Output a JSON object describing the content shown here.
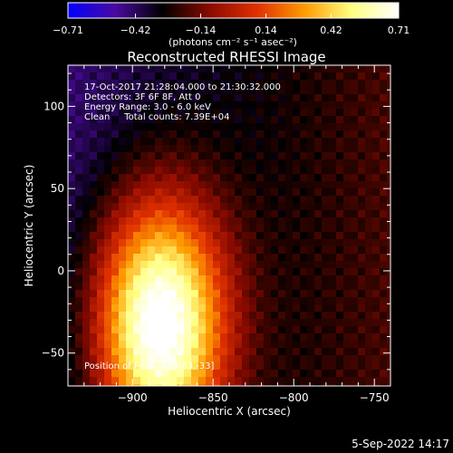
{
  "chart_data": {
    "type": "heatmap",
    "title": "Reconstructed RHESSI Image",
    "xlabel": "Heliocentric X (arcsec)",
    "ylabel": "Heliocentric Y (arcsec)",
    "xlim": [
      -940,
      -740
    ],
    "ylim": [
      -70,
      125
    ],
    "x_ticks": [
      -900,
      -850,
      -800,
      -750
    ],
    "y_ticks": [
      100,
      50,
      0,
      -50
    ],
    "grid": false,
    "colorbar": {
      "min": -0.71,
      "max": 0.71,
      "ticks": [
        -0.71,
        -0.42,
        -0.14,
        0.14,
        0.42,
        0.71
      ],
      "label": "(photons cm⁻² s⁻¹ asec⁻²)",
      "colormap": [
        "#0000ff",
        "#4a0aa0",
        "#000000",
        "#8a0a00",
        "#e03000",
        "#ff9a00",
        "#ffff80",
        "#ffffff"
      ]
    },
    "annotations": [
      "17-Oct-2017 21:28:04.000 to 21:30:32.000",
      "Detectors: 3F 6F 8F, Att 0",
      "Energy Range: 3.0 - 6.0 keV",
      "Clean     Total counts: 7.39E+04"
    ],
    "peak_label": "Position of Peak = [-883,-33]",
    "peak": {
      "x": -883,
      "y": -33,
      "value": 0.71
    },
    "sources": [
      {
        "x": -883,
        "y": -33,
        "amplitude": 0.71,
        "sigma_x": 40,
        "sigma_y": 75
      }
    ],
    "background": {
      "west_value": -0.45,
      "east_value": -0.2
    }
  },
  "footer": {
    "timestamp": "5-Sep-2022 14:17"
  }
}
